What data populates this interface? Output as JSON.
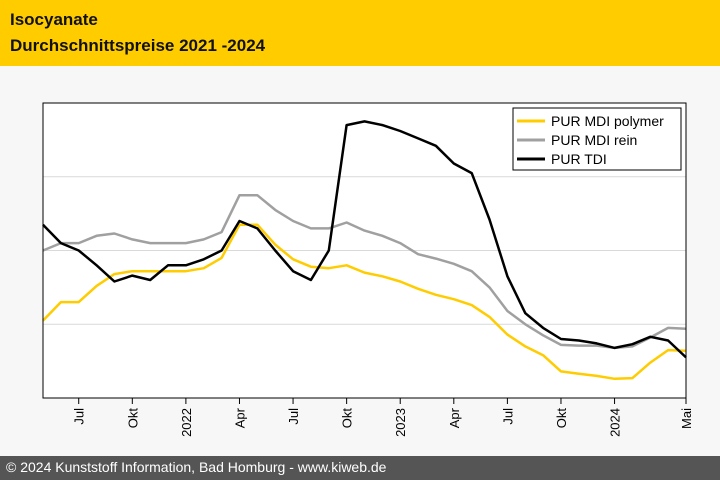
{
  "header": {
    "title_line1": "Isocyanate",
    "title_line2": "Durchschnittspreise 2021 -2024"
  },
  "footer": {
    "copyright": "© 2024 Kunststoff Information, Bad Homburg - www.kiweb.de"
  },
  "colors": {
    "header_bg": "#ffcc00",
    "footer_bg": "#555555",
    "series_polymer": "#ffcc00",
    "series_rein": "#a0a0a0",
    "series_tdi": "#000000"
  },
  "chart_data": {
    "type": "line",
    "title": "Durchschnittspreise 2021 -2024",
    "xlabel": "",
    "ylabel": "",
    "grid": true,
    "legend_position": "top-right",
    "y_range": [
      0,
      4
    ],
    "x_range": [
      0,
      36
    ],
    "x_ticks": [
      {
        "x": 2,
        "label": "Jul"
      },
      {
        "x": 5,
        "label": "Okt"
      },
      {
        "x": 8,
        "label": "2022"
      },
      {
        "x": 11,
        "label": "Apr"
      },
      {
        "x": 14,
        "label": "Jul"
      },
      {
        "x": 17,
        "label": "Okt"
      },
      {
        "x": 20,
        "label": "2023"
      },
      {
        "x": 23,
        "label": "Apr"
      },
      {
        "x": 26,
        "label": "Jul"
      },
      {
        "x": 29,
        "label": "Okt"
      },
      {
        "x": 32,
        "label": "2024"
      },
      {
        "x": 36,
        "label": "Mai"
      }
    ],
    "series": [
      {
        "name": "PUR MDI polymer",
        "color": "#ffcc00",
        "points": [
          [
            0,
            1.05
          ],
          [
            1,
            1.3
          ],
          [
            2,
            1.3
          ],
          [
            3,
            1.52
          ],
          [
            4,
            1.68
          ],
          [
            5,
            1.72
          ],
          [
            6,
            1.72
          ],
          [
            7,
            1.72
          ],
          [
            8,
            1.72
          ],
          [
            9,
            1.76
          ],
          [
            10,
            1.9
          ],
          [
            11,
            2.35
          ],
          [
            12,
            2.35
          ],
          [
            13,
            2.08
          ],
          [
            14,
            1.88
          ],
          [
            15,
            1.78
          ],
          [
            16,
            1.76
          ],
          [
            17,
            1.8
          ],
          [
            18,
            1.7
          ],
          [
            19,
            1.65
          ],
          [
            20,
            1.58
          ],
          [
            21,
            1.48
          ],
          [
            22,
            1.4
          ],
          [
            23,
            1.34
          ],
          [
            24,
            1.26
          ],
          [
            25,
            1.1
          ],
          [
            26,
            0.86
          ],
          [
            27,
            0.7
          ],
          [
            28,
            0.58
          ],
          [
            29,
            0.36
          ],
          [
            30,
            0.33
          ],
          [
            31,
            0.3
          ],
          [
            32,
            0.26
          ],
          [
            33,
            0.27
          ],
          [
            34,
            0.48
          ],
          [
            35,
            0.65
          ],
          [
            36,
            0.64
          ]
        ]
      },
      {
        "name": "PUR MDI rein",
        "color": "#a0a0a0",
        "points": [
          [
            0,
            2.0
          ],
          [
            1,
            2.1
          ],
          [
            2,
            2.1
          ],
          [
            3,
            2.2
          ],
          [
            4,
            2.23
          ],
          [
            5,
            2.15
          ],
          [
            6,
            2.1
          ],
          [
            7,
            2.1
          ],
          [
            8,
            2.1
          ],
          [
            9,
            2.15
          ],
          [
            10,
            2.25
          ],
          [
            11,
            2.75
          ],
          [
            12,
            2.75
          ],
          [
            13,
            2.55
          ],
          [
            14,
            2.4
          ],
          [
            15,
            2.3
          ],
          [
            16,
            2.3
          ],
          [
            17,
            2.38
          ],
          [
            18,
            2.27
          ],
          [
            19,
            2.2
          ],
          [
            20,
            2.1
          ],
          [
            21,
            1.95
          ],
          [
            22,
            1.89
          ],
          [
            23,
            1.82
          ],
          [
            24,
            1.72
          ],
          [
            25,
            1.5
          ],
          [
            26,
            1.18
          ],
          [
            27,
            1.0
          ],
          [
            28,
            0.85
          ],
          [
            29,
            0.72
          ],
          [
            30,
            0.71
          ],
          [
            31,
            0.71
          ],
          [
            32,
            0.68
          ],
          [
            33,
            0.7
          ],
          [
            34,
            0.82
          ],
          [
            35,
            0.95
          ],
          [
            36,
            0.94
          ]
        ]
      },
      {
        "name": "PUR TDI",
        "color": "#000000",
        "points": [
          [
            0,
            2.35
          ],
          [
            1,
            2.1
          ],
          [
            2,
            2.0
          ],
          [
            3,
            1.8
          ],
          [
            4,
            1.58
          ],
          [
            5,
            1.66
          ],
          [
            6,
            1.6
          ],
          [
            7,
            1.8
          ],
          [
            8,
            1.8
          ],
          [
            9,
            1.88
          ],
          [
            10,
            2.0
          ],
          [
            11,
            2.4
          ],
          [
            12,
            2.3
          ],
          [
            13,
            2.0
          ],
          [
            14,
            1.72
          ],
          [
            15,
            1.6
          ],
          [
            16,
            2.0
          ],
          [
            17,
            3.7
          ],
          [
            18,
            3.75
          ],
          [
            19,
            3.7
          ],
          [
            20,
            3.62
          ],
          [
            21,
            3.52
          ],
          [
            22,
            3.42
          ],
          [
            23,
            3.18
          ],
          [
            24,
            3.05
          ],
          [
            25,
            2.42
          ],
          [
            26,
            1.65
          ],
          [
            27,
            1.15
          ],
          [
            28,
            0.95
          ],
          [
            29,
            0.8
          ],
          [
            30,
            0.78
          ],
          [
            31,
            0.74
          ],
          [
            32,
            0.68
          ],
          [
            33,
            0.73
          ],
          [
            34,
            0.83
          ],
          [
            35,
            0.78
          ],
          [
            36,
            0.55
          ]
        ]
      }
    ]
  }
}
